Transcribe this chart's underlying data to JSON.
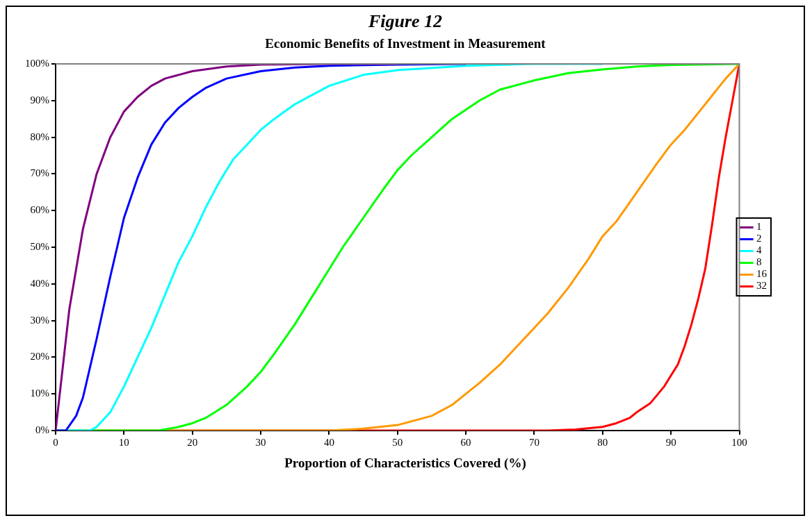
{
  "chart_data": {
    "type": "line",
    "title": "Figure 12",
    "subtitle": "Economic Benefits of Investment in Measurement",
    "xlabel": "Proportion of Characteristics Covered  (%)",
    "xlim": [
      0,
      100
    ],
    "xticks": [
      0,
      10,
      20,
      30,
      40,
      50,
      60,
      70,
      80,
      90,
      100
    ],
    "ylim": [
      0,
      100
    ],
    "yticks": [
      {
        "value": 0,
        "label": "0%"
      },
      {
        "value": 10,
        "label": "10%"
      },
      {
        "value": 20,
        "label": "20%"
      },
      {
        "value": 30,
        "label": "30%"
      },
      {
        "value": 40,
        "label": "40%"
      },
      {
        "value": 50,
        "label": "50%"
      },
      {
        "value": 60,
        "label": "60%"
      },
      {
        "value": 70,
        "label": "70%"
      },
      {
        "value": 80,
        "label": "80%"
      },
      {
        "value": 90,
        "label": "90%"
      },
      {
        "value": 100,
        "label": "100%"
      }
    ],
    "grid": false,
    "legend": "right",
    "marker": "none",
    "line_style": "solid",
    "series": [
      {
        "name": "1",
        "color": "#800080",
        "x": [
          0,
          2,
          4,
          6,
          8,
          10,
          12,
          14,
          16,
          18,
          20,
          25,
          30,
          40,
          50
        ],
        "values": [
          0,
          33,
          55,
          70,
          80,
          87,
          91,
          94,
          96,
          97,
          98,
          99.3,
          99.8,
          100,
          100
        ]
      },
      {
        "name": "2",
        "color": "#0000ff",
        "x": [
          0,
          1.5,
          3,
          4,
          6,
          8,
          10,
          12,
          14,
          16,
          18,
          20,
          22,
          25,
          30,
          35,
          40,
          50,
          60
        ],
        "values": [
          0,
          0,
          4,
          9,
          25,
          42,
          58,
          69,
          78,
          84,
          88,
          91,
          93.5,
          96,
          98,
          99,
          99.5,
          99.8,
          100
        ]
      },
      {
        "name": "4",
        "color": "#00ffff",
        "x": [
          0,
          5,
          6,
          8,
          10,
          12,
          14,
          16,
          18,
          20,
          22,
          24,
          26,
          28,
          30,
          32,
          35,
          40,
          45,
          50,
          60,
          70,
          80
        ],
        "values": [
          0,
          0,
          1,
          5,
          12,
          20,
          28,
          37,
          46,
          53,
          61,
          68,
          74,
          78,
          82,
          85,
          89,
          94,
          97,
          98.3,
          99.5,
          100,
          100
        ]
      },
      {
        "name": "8",
        "color": "#00ff00",
        "x": [
          0,
          15,
          18,
          20,
          22,
          25,
          28,
          30,
          32,
          35,
          38,
          40,
          42,
          45,
          48,
          50,
          52,
          55,
          58,
          60,
          62,
          65,
          70,
          75,
          80,
          85,
          90,
          100
        ],
        "values": [
          0,
          0,
          1,
          2,
          3.5,
          7,
          12,
          16,
          21,
          29,
          38,
          44,
          50,
          58,
          66,
          71,
          75,
          80,
          85,
          87.5,
          90,
          93,
          95.5,
          97.5,
          98.5,
          99.3,
          99.7,
          100
        ]
      },
      {
        "name": "16",
        "color": "#ff9900",
        "x": [
          0,
          40,
          45,
          50,
          55,
          58,
          60,
          62,
          65,
          68,
          70,
          72,
          75,
          78,
          80,
          82,
          85,
          88,
          90,
          92,
          95,
          98,
          100
        ],
        "values": [
          0,
          0,
          0.5,
          1.5,
          4,
          7,
          10,
          13,
          18,
          24,
          28,
          32,
          39,
          47,
          53,
          57,
          65,
          73,
          78,
          82,
          89,
          96,
          100
        ]
      },
      {
        "name": "32",
        "color": "#ff0000",
        "x": [
          0,
          72,
          76,
          80,
          82,
          84,
          85,
          87,
          89,
          90,
          91,
          92,
          93,
          94,
          95,
          96,
          97,
          98,
          99,
          100
        ],
        "values": [
          0,
          0,
          0.3,
          1,
          2,
          3.5,
          5,
          7.5,
          12,
          15,
          18,
          23,
          29,
          36,
          44,
          56,
          69,
          80,
          90,
          100
        ]
      }
    ]
  }
}
